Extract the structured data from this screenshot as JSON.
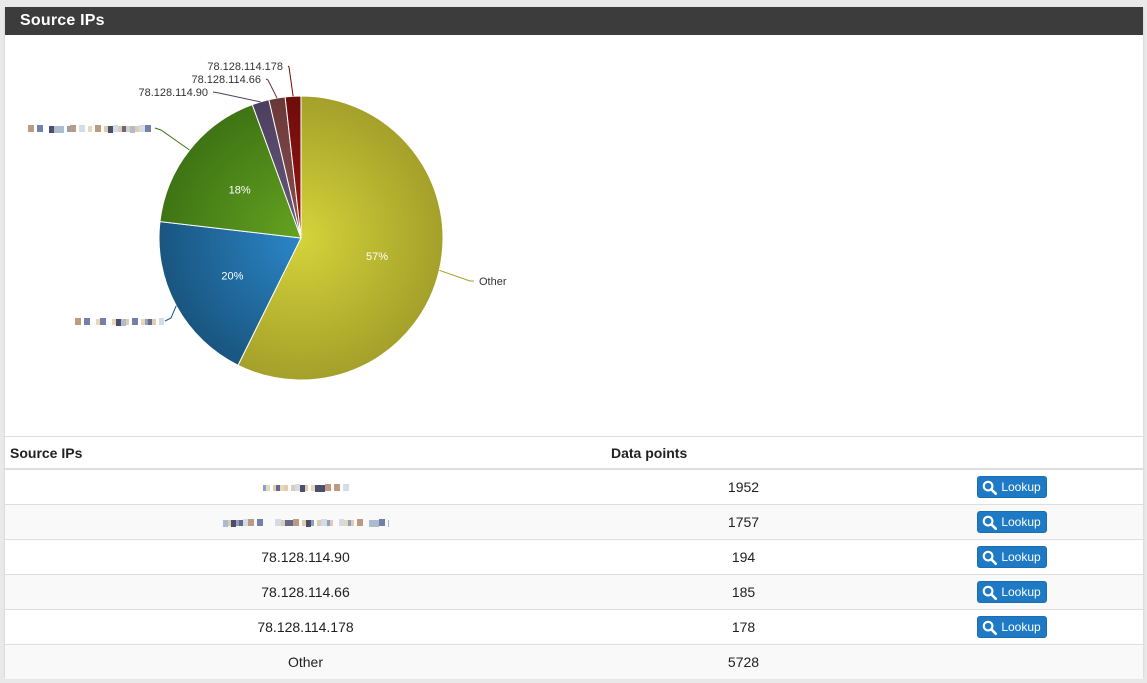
{
  "panel": {
    "title": "Source IPs"
  },
  "table": {
    "headers": [
      "Source IPs",
      "Data points",
      ""
    ],
    "rows": [
      {
        "ip": "",
        "points": "1952",
        "lookup": "Lookup"
      },
      {
        "ip": "",
        "points": "1757",
        "lookup": "Lookup"
      },
      {
        "ip": "78.128.114.90",
        "points": "194",
        "lookup": "Lookup"
      },
      {
        "ip": "78.128.114.66",
        "points": "185",
        "lookup": "Lookup"
      },
      {
        "ip": "78.128.114.178",
        "points": "178",
        "lookup": "Lookup"
      },
      {
        "ip": "Other",
        "points": "5728",
        "lookup": ""
      }
    ]
  },
  "chart_data": {
    "type": "pie",
    "slices": [
      {
        "label": "Other",
        "value": 5728,
        "pct_label": "57%",
        "color_start": "#d5d33a",
        "color_end": "#a4a02a"
      },
      {
        "label": "",
        "value": 1952,
        "pct_label": "20%",
        "color_start": "#2b86c8",
        "color_end": "#19557f"
      },
      {
        "label": "",
        "value": 1757,
        "pct_label": "18%",
        "color_start": "#64a321",
        "color_end": "#3e7414"
      },
      {
        "label": "78.128.114.90",
        "value": 194,
        "pct_label": "",
        "color_start": "#6a5a7e",
        "color_end": "#4c3f5e"
      },
      {
        "label": "78.128.114.66",
        "value": 185,
        "pct_label": "",
        "color_start": "#8a5050",
        "color_end": "#6a3838"
      },
      {
        "label": "78.128.114.178",
        "value": 178,
        "pct_label": "",
        "color_start": "#9a1515",
        "color_end": "#6e0c0c"
      }
    ]
  },
  "icons": {
    "lookup": "search-icon"
  }
}
